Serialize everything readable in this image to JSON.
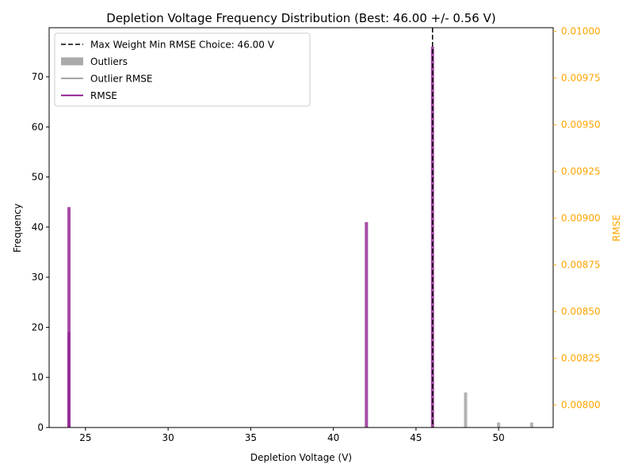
{
  "chart_data": {
    "type": "bar",
    "title": "Depletion Voltage Frequency Distribution (Best: 46.00 +/- 0.56 V)",
    "xlabel": "Depletion Voltage (V)",
    "ylabel": "Frequency",
    "y2label": "RMSE",
    "xlim": [
      22.8,
      53.3
    ],
    "ylim": [
      0,
      79.8
    ],
    "y2lim": [
      0.00788,
      0.01002
    ],
    "x_ticks": [
      25,
      30,
      35,
      40,
      45,
      50
    ],
    "y_ticks": [
      0,
      10,
      20,
      30,
      40,
      50,
      60,
      70
    ],
    "y2_ticks": [
      "0.00800",
      "0.00825",
      "0.00850",
      "0.00875",
      "0.00900",
      "0.00925",
      "0.00950",
      "0.00975",
      "0.01000"
    ],
    "y2_color": "#ffa500",
    "best_line": {
      "x": 46.0,
      "label": "Max Weight Min RMSE Choice: 46.00 V",
      "color": "#000000",
      "style": "dashed"
    },
    "series": [
      {
        "name": "RMSE",
        "kind": "bar",
        "color": "#800080",
        "opacity": 0.7,
        "x": [
          24,
          42,
          46
        ],
        "values": [
          44,
          41,
          76
        ]
      },
      {
        "name": "",
        "kind": "bar",
        "color": "#800080",
        "opacity": 0.4,
        "x": [
          24
        ],
        "values": [
          19
        ]
      },
      {
        "name": "Outliers",
        "kind": "bar",
        "color": "#a0a0a0",
        "opacity": 0.8,
        "x": [
          48,
          50,
          52
        ],
        "values": [
          7,
          1,
          1
        ]
      },
      {
        "name": "Outlier RMSE",
        "kind": "line",
        "color": "#999999"
      }
    ],
    "legend": {
      "position": "top-left",
      "entries": [
        {
          "label": "Max Weight Min RMSE Choice: 46.00 V",
          "marker": "dashed-line",
          "color": "#000000"
        },
        {
          "label": "Outliers",
          "marker": "patch",
          "color": "#aaaaaa"
        },
        {
          "label": "Outlier RMSE",
          "marker": "line",
          "color": "#999999"
        },
        {
          "label": "RMSE",
          "marker": "line",
          "color": "#800080"
        }
      ]
    },
    "grid": false
  }
}
